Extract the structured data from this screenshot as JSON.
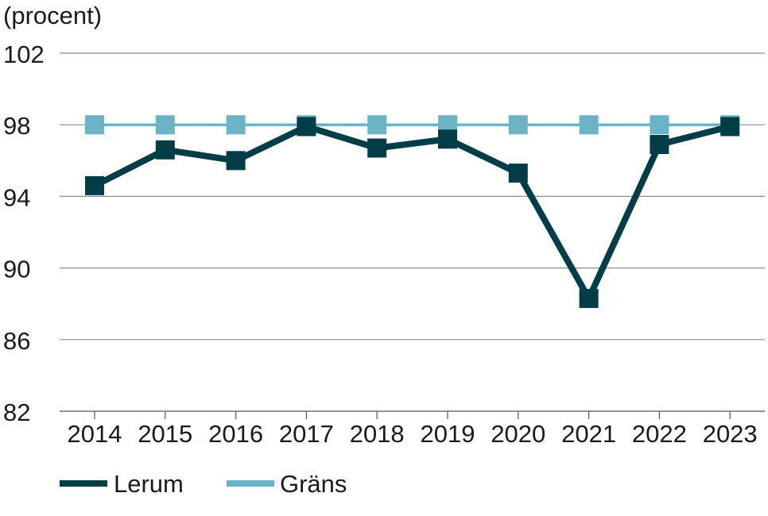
{
  "chart_data": {
    "type": "line",
    "title": "",
    "ylabel": "(procent)",
    "xlabel": "",
    "categories": [
      "2014",
      "2015",
      "2016",
      "2017",
      "2018",
      "2019",
      "2020",
      "2021",
      "2022",
      "2023"
    ],
    "ylim": [
      82,
      102
    ],
    "yticks": [
      82,
      86,
      90,
      94,
      98,
      102
    ],
    "grid": "horizontal",
    "legend_position": "bottom-left",
    "series": [
      {
        "name": "Lerum",
        "color": "#003d47",
        "values": [
          94.6,
          96.6,
          96.0,
          97.9,
          96.7,
          97.2,
          95.3,
          88.3,
          96.9,
          97.9
        ]
      },
      {
        "name": "Gräns",
        "color": "#6bb4c8",
        "values": [
          98,
          98,
          98,
          98,
          98,
          98,
          98,
          98,
          98,
          98
        ]
      }
    ]
  }
}
